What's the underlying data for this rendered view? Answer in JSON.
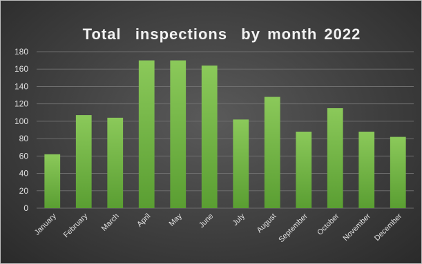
{
  "chart_data": {
    "type": "bar",
    "title": "Total  inspections  by month 2022",
    "categories": [
      "January",
      "February",
      "March",
      "April",
      "May",
      "June",
      "July",
      "August",
      "September",
      "October",
      "November",
      "December"
    ],
    "values": [
      62,
      107,
      104,
      170,
      170,
      164,
      102,
      128,
      88,
      115,
      88,
      82
    ],
    "ylim": [
      0,
      180
    ],
    "yticks": [
      0,
      20,
      40,
      60,
      80,
      100,
      120,
      140,
      160,
      180
    ],
    "grid": true,
    "legend": "none",
    "colors": {
      "bar_top": "#8bc95a",
      "bar_bottom": "#5a9e32",
      "grid": "#6e6e6e",
      "text": "#e0e0e0"
    }
  }
}
